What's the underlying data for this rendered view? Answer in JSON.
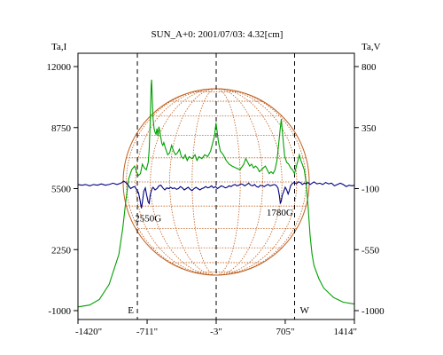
{
  "chart_data": {
    "type": "line",
    "title": "SUN_A+0: 2001/07/03: 4.32[cm]",
    "xlim": [
      -1420,
      1414
    ],
    "x_ticks": [
      -1420,
      -711,
      -3,
      705,
      1414
    ],
    "x_tick_labels": [
      "-1420\"",
      "-711\"",
      "-3\"",
      "705\"",
      "1414\""
    ],
    "left_axis": {
      "label": "Ta,I",
      "ylim": [
        -1000,
        12000
      ],
      "ticks": [
        -1000,
        2250,
        5500,
        8750,
        12000
      ],
      "tick_labels": [
        "-1000",
        "2250",
        "5500",
        "8750",
        "12000"
      ]
    },
    "right_axis": {
      "label": "Ta,V",
      "ylim": [
        -1000,
        800
      ],
      "ticks": [
        -1000,
        -550,
        -100,
        350,
        800
      ],
      "tick_labels": [
        "-1000",
        "-550",
        "-100",
        "350",
        "800"
      ]
    },
    "limb_markers": [
      {
        "x": -811,
        "label": "E"
      },
      {
        "x": -3,
        "label": ""
      },
      {
        "x": 801,
        "label": "W"
      }
    ],
    "annotations": [
      {
        "text": "2550G",
        "x": -700,
        "y": 3750
      },
      {
        "text": "1780G",
        "x": 650,
        "y": 4050
      }
    ],
    "series": [
      {
        "axis": "left",
        "color": "#00a000",
        "points": [
          [
            -1420,
            -800
          ],
          [
            -1300,
            -700
          ],
          [
            -1200,
            -400
          ],
          [
            -1100,
            400
          ],
          [
            -1000,
            2000
          ],
          [
            -960,
            3400
          ],
          [
            -930,
            4800
          ],
          [
            -900,
            6000
          ],
          [
            -870,
            6500
          ],
          [
            -840,
            6700
          ],
          [
            -820,
            6400
          ],
          [
            -800,
            6200
          ],
          [
            -780,
            6300
          ],
          [
            -760,
            6800
          ],
          [
            -740,
            6600
          ],
          [
            -720,
            6500
          ],
          [
            -700,
            6900
          ],
          [
            -690,
            7600
          ],
          [
            -680,
            9000
          ],
          [
            -670,
            11000
          ],
          [
            -665,
            11300
          ],
          [
            -660,
            10500
          ],
          [
            -650,
            9200
          ],
          [
            -640,
            8700
          ],
          [
            -630,
            8500
          ],
          [
            -620,
            8400
          ],
          [
            -610,
            8700
          ],
          [
            -600,
            8300
          ],
          [
            -590,
            8800
          ],
          [
            -580,
            8500
          ],
          [
            -570,
            8200
          ],
          [
            -560,
            7900
          ],
          [
            -550,
            7800
          ],
          [
            -540,
            7950
          ],
          [
            -520,
            7600
          ],
          [
            -500,
            7300
          ],
          [
            -480,
            7400
          ],
          [
            -460,
            7800
          ],
          [
            -440,
            7500
          ],
          [
            -420,
            7300
          ],
          [
            -400,
            7400
          ],
          [
            -380,
            7600
          ],
          [
            -360,
            7200
          ],
          [
            -340,
            7100
          ],
          [
            -320,
            7300
          ],
          [
            -300,
            7000
          ],
          [
            -280,
            7200
          ],
          [
            -250,
            7100
          ],
          [
            -220,
            7300
          ],
          [
            -200,
            7000
          ],
          [
            -180,
            7200
          ],
          [
            -150,
            7100
          ],
          [
            -120,
            7300
          ],
          [
            -90,
            7200
          ],
          [
            -60,
            7500
          ],
          [
            -40,
            7900
          ],
          [
            -20,
            8300
          ],
          [
            -5,
            9000
          ],
          [
            5,
            8600
          ],
          [
            20,
            8000
          ],
          [
            40,
            7500
          ],
          [
            70,
            7300
          ],
          [
            100,
            7000
          ],
          [
            130,
            6800
          ],
          [
            160,
            6700
          ],
          [
            200,
            6600
          ],
          [
            240,
            6500
          ],
          [
            280,
            6800
          ],
          [
            300,
            7100
          ],
          [
            320,
            6900
          ],
          [
            340,
            6700
          ],
          [
            360,
            6800
          ],
          [
            380,
            6600
          ],
          [
            400,
            6700
          ],
          [
            420,
            6600
          ],
          [
            440,
            6400
          ],
          [
            460,
            6500
          ],
          [
            480,
            6600
          ],
          [
            500,
            6700
          ],
          [
            520,
            6500
          ],
          [
            540,
            6300
          ],
          [
            560,
            6400
          ],
          [
            580,
            6300
          ],
          [
            600,
            6500
          ],
          [
            620,
            7000
          ],
          [
            640,
            8000
          ],
          [
            655,
            8750
          ],
          [
            665,
            9200
          ],
          [
            675,
            8600
          ],
          [
            690,
            7700
          ],
          [
            700,
            7200
          ],
          [
            720,
            6900
          ],
          [
            740,
            6800
          ],
          [
            760,
            6600
          ],
          [
            780,
            6500
          ],
          [
            800,
            6300
          ],
          [
            820,
            6700
          ],
          [
            840,
            7100
          ],
          [
            850,
            7300
          ],
          [
            865,
            7000
          ],
          [
            880,
            6800
          ],
          [
            900,
            6500
          ],
          [
            920,
            5800
          ],
          [
            940,
            4500
          ],
          [
            960,
            3000
          ],
          [
            980,
            2000
          ],
          [
            1000,
            1400
          ],
          [
            1050,
            700
          ],
          [
            1100,
            200
          ],
          [
            1200,
            -300
          ],
          [
            1300,
            -550
          ],
          [
            1414,
            -650
          ]
        ]
      },
      {
        "axis": "right",
        "color": "#000080",
        "points": [
          [
            -1420,
            -70
          ],
          [
            -1380,
            -75
          ],
          [
            -1340,
            -70
          ],
          [
            -1300,
            -80
          ],
          [
            -1260,
            -70
          ],
          [
            -1220,
            -75
          ],
          [
            -1180,
            -65
          ],
          [
            -1140,
            -75
          ],
          [
            -1100,
            -70
          ],
          [
            -1060,
            -60
          ],
          [
            -1020,
            -70
          ],
          [
            -980,
            -60
          ],
          [
            -950,
            -45
          ],
          [
            -920,
            -60
          ],
          [
            -900,
            -80
          ],
          [
            -880,
            -100
          ],
          [
            -860,
            -90
          ],
          [
            -840,
            -85
          ],
          [
            -820,
            -105
          ],
          [
            -800,
            -130
          ],
          [
            -785,
            -180
          ],
          [
            -770,
            -245
          ],
          [
            -760,
            -200
          ],
          [
            -745,
            -120
          ],
          [
            -730,
            -95
          ],
          [
            -715,
            -150
          ],
          [
            -700,
            -200
          ],
          [
            -690,
            -210
          ],
          [
            -680,
            -150
          ],
          [
            -670,
            -120
          ],
          [
            -660,
            -100
          ],
          [
            -650,
            -90
          ],
          [
            -630,
            -110
          ],
          [
            -610,
            -100
          ],
          [
            -590,
            -80
          ],
          [
            -570,
            -75
          ],
          [
            -550,
            -95
          ],
          [
            -530,
            -110
          ],
          [
            -510,
            -95
          ],
          [
            -490,
            -100
          ],
          [
            -470,
            -90
          ],
          [
            -450,
            -100
          ],
          [
            -430,
            -95
          ],
          [
            -410,
            -105
          ],
          [
            -390,
            -100
          ],
          [
            -370,
            -85
          ],
          [
            -350,
            -95
          ],
          [
            -330,
            -110
          ],
          [
            -310,
            -100
          ],
          [
            -290,
            -90
          ],
          [
            -270,
            -105
          ],
          [
            -250,
            -115
          ],
          [
            -230,
            -100
          ],
          [
            -210,
            -90
          ],
          [
            -190,
            -100
          ],
          [
            -170,
            -110
          ],
          [
            -150,
            -100
          ],
          [
            -130,
            -95
          ],
          [
            -110,
            -85
          ],
          [
            -90,
            -95
          ],
          [
            -70,
            -90
          ],
          [
            -50,
            -80
          ],
          [
            -30,
            -95
          ],
          [
            -10,
            -85
          ],
          [
            10,
            -100
          ],
          [
            30,
            -90
          ],
          [
            50,
            -80
          ],
          [
            70,
            -85
          ],
          [
            90,
            -95
          ],
          [
            110,
            -90
          ],
          [
            130,
            -80
          ],
          [
            150,
            -85
          ],
          [
            170,
            -75
          ],
          [
            190,
            -70
          ],
          [
            210,
            -80
          ],
          [
            230,
            -75
          ],
          [
            250,
            -65
          ],
          [
            270,
            -70
          ],
          [
            290,
            -80
          ],
          [
            310,
            -70
          ],
          [
            330,
            -60
          ],
          [
            350,
            -75
          ],
          [
            370,
            -80
          ],
          [
            390,
            -70
          ],
          [
            410,
            -85
          ],
          [
            430,
            -90
          ],
          [
            450,
            -75
          ],
          [
            470,
            -80
          ],
          [
            490,
            -85
          ],
          [
            510,
            -75
          ],
          [
            530,
            -70
          ],
          [
            550,
            -80
          ],
          [
            570,
            -75
          ],
          [
            590,
            -70
          ],
          [
            610,
            -75
          ],
          [
            630,
            -95
          ],
          [
            645,
            -150
          ],
          [
            655,
            -210
          ],
          [
            665,
            -190
          ],
          [
            675,
            -150
          ],
          [
            690,
            -120
          ],
          [
            705,
            -90
          ],
          [
            720,
            -110
          ],
          [
            735,
            -140
          ],
          [
            745,
            -120
          ],
          [
            760,
            -80
          ],
          [
            780,
            -60
          ],
          [
            800,
            -55
          ],
          [
            820,
            -65
          ],
          [
            840,
            -50
          ],
          [
            860,
            -55
          ],
          [
            880,
            -70
          ],
          [
            900,
            -60
          ],
          [
            920,
            -65
          ],
          [
            940,
            -55
          ],
          [
            960,
            -70
          ],
          [
            980,
            -60
          ],
          [
            1000,
            -50
          ],
          [
            1030,
            -65
          ],
          [
            1060,
            -60
          ],
          [
            1090,
            -70
          ],
          [
            1120,
            -55
          ],
          [
            1150,
            -65
          ],
          [
            1180,
            -60
          ],
          [
            1210,
            -80
          ],
          [
            1240,
            -70
          ],
          [
            1270,
            -60
          ],
          [
            1300,
            -70
          ],
          [
            1330,
            -85
          ],
          [
            1360,
            -75
          ],
          [
            1390,
            -80
          ],
          [
            1414,
            -75
          ]
        ]
      }
    ],
    "solar_disk_color": "#c06020",
    "legend": "none",
    "grid": false
  }
}
